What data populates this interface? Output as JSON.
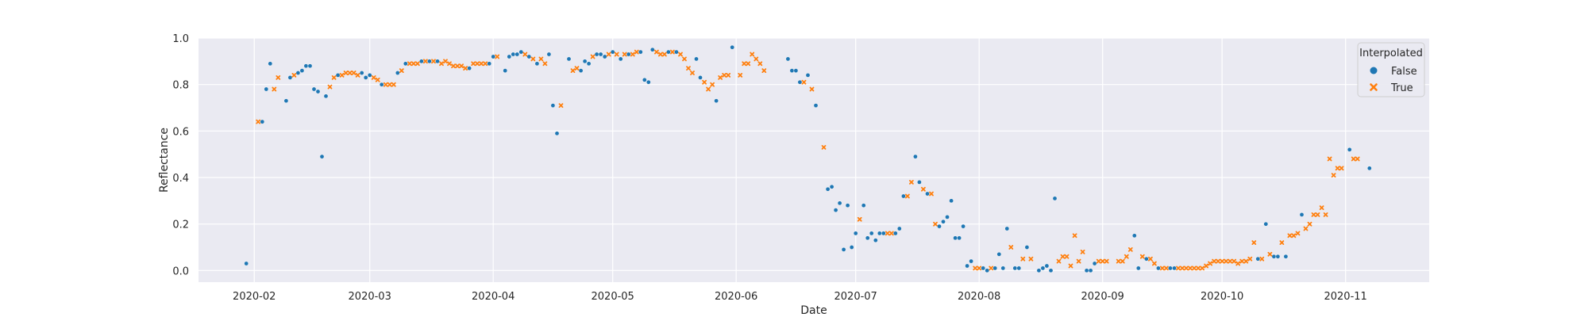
{
  "chart_data": {
    "type": "scatter",
    "title": "",
    "xlabel": "Date",
    "ylabel": "Reflectance",
    "x_axis": {
      "type": "date",
      "range": [
        "2020-01-18",
        "2020-11-22"
      ],
      "ticks": [
        "2020-02-01",
        "2020-03-01",
        "2020-04-01",
        "2020-05-01",
        "2020-06-01",
        "2020-07-01",
        "2020-08-01",
        "2020-09-01",
        "2020-10-01",
        "2020-11-01"
      ],
      "tick_labels": [
        "2020-02",
        "2020-03",
        "2020-04",
        "2020-05",
        "2020-06",
        "2020-07",
        "2020-08",
        "2020-09",
        "2020-10",
        "2020-11"
      ]
    },
    "y_axis": {
      "range": [
        -0.05,
        1.0
      ],
      "ticks": [
        0.0,
        0.2,
        0.4,
        0.6,
        0.8,
        1.0
      ],
      "tick_labels": [
        "0.0",
        "0.2",
        "0.4",
        "0.6",
        "0.8",
        "1.0"
      ]
    },
    "grid": true,
    "legend": {
      "title": "Interpolated",
      "placement": "top-right",
      "entries": [
        {
          "label": "False",
          "marker": "circle",
          "color": "#1f77b4"
        },
        {
          "label": "True",
          "marker": "x",
          "color": "#ff7f0e"
        }
      ]
    },
    "series": [
      {
        "name": "False",
        "color": "#1f77b4",
        "marker": "circle",
        "points": [
          [
            "2020-01-30",
            0.03
          ],
          [
            "2020-02-03",
            0.64
          ],
          [
            "2020-02-04",
            0.78
          ],
          [
            "2020-02-05",
            0.89
          ],
          [
            "2020-02-09",
            0.73
          ],
          [
            "2020-02-10",
            0.83
          ],
          [
            "2020-02-12",
            0.85
          ],
          [
            "2020-02-13",
            0.86
          ],
          [
            "2020-02-14",
            0.88
          ],
          [
            "2020-02-15",
            0.88
          ],
          [
            "2020-02-16",
            0.78
          ],
          [
            "2020-02-17",
            0.77
          ],
          [
            "2020-02-18",
            0.49
          ],
          [
            "2020-02-19",
            0.75
          ],
          [
            "2020-02-22",
            0.84
          ],
          [
            "2020-02-28",
            0.85
          ],
          [
            "2020-02-29",
            0.83
          ],
          [
            "2020-03-01",
            0.84
          ],
          [
            "2020-03-04",
            0.8
          ],
          [
            "2020-03-08",
            0.85
          ],
          [
            "2020-03-10",
            0.89
          ],
          [
            "2020-03-14",
            0.9
          ],
          [
            "2020-03-16",
            0.9
          ],
          [
            "2020-03-18",
            0.9
          ],
          [
            "2020-03-26",
            0.87
          ],
          [
            "2020-03-31",
            0.89
          ],
          [
            "2020-04-01",
            0.92
          ],
          [
            "2020-04-04",
            0.86
          ],
          [
            "2020-04-05",
            0.92
          ],
          [
            "2020-04-06",
            0.93
          ],
          [
            "2020-04-07",
            0.93
          ],
          [
            "2020-04-08",
            0.94
          ],
          [
            "2020-04-10",
            0.92
          ],
          [
            "2020-04-12",
            0.89
          ],
          [
            "2020-04-15",
            0.93
          ],
          [
            "2020-04-16",
            0.71
          ],
          [
            "2020-04-17",
            0.59
          ],
          [
            "2020-04-20",
            0.91
          ],
          [
            "2020-04-23",
            0.86
          ],
          [
            "2020-04-24",
            0.9
          ],
          [
            "2020-04-25",
            0.89
          ],
          [
            "2020-04-27",
            0.93
          ],
          [
            "2020-04-28",
            0.93
          ],
          [
            "2020-04-29",
            0.92
          ],
          [
            "2020-05-01",
            0.94
          ],
          [
            "2020-05-03",
            0.91
          ],
          [
            "2020-05-05",
            0.93
          ],
          [
            "2020-05-08",
            0.94
          ],
          [
            "2020-05-09",
            0.82
          ],
          [
            "2020-05-10",
            0.81
          ],
          [
            "2020-05-11",
            0.95
          ],
          [
            "2020-05-15",
            0.94
          ],
          [
            "2020-05-17",
            0.94
          ],
          [
            "2020-05-22",
            0.91
          ],
          [
            "2020-05-23",
            0.83
          ],
          [
            "2020-05-27",
            0.73
          ],
          [
            "2020-05-31",
            0.96
          ],
          [
            "2020-06-14",
            0.91
          ],
          [
            "2020-06-15",
            0.86
          ],
          [
            "2020-06-16",
            0.86
          ],
          [
            "2020-06-17",
            0.81
          ],
          [
            "2020-06-19",
            0.84
          ],
          [
            "2020-06-21",
            0.71
          ],
          [
            "2020-06-24",
            0.35
          ],
          [
            "2020-06-25",
            0.36
          ],
          [
            "2020-06-26",
            0.26
          ],
          [
            "2020-06-27",
            0.29
          ],
          [
            "2020-06-28",
            0.09
          ],
          [
            "2020-06-29",
            0.28
          ],
          [
            "2020-06-30",
            0.1
          ],
          [
            "2020-07-01",
            0.16
          ],
          [
            "2020-07-03",
            0.28
          ],
          [
            "2020-07-04",
            0.14
          ],
          [
            "2020-07-05",
            0.16
          ],
          [
            "2020-07-06",
            0.13
          ],
          [
            "2020-07-07",
            0.16
          ],
          [
            "2020-07-08",
            0.16
          ],
          [
            "2020-07-11",
            0.16
          ],
          [
            "2020-07-12",
            0.18
          ],
          [
            "2020-07-13",
            0.32
          ],
          [
            "2020-07-16",
            0.49
          ],
          [
            "2020-07-17",
            0.38
          ],
          [
            "2020-07-19",
            0.33
          ],
          [
            "2020-07-22",
            0.19
          ],
          [
            "2020-07-23",
            0.21
          ],
          [
            "2020-07-24",
            0.23
          ],
          [
            "2020-07-25",
            0.3
          ],
          [
            "2020-07-26",
            0.14
          ],
          [
            "2020-07-27",
            0.14
          ],
          [
            "2020-07-28",
            0.19
          ],
          [
            "2020-07-29",
            0.02
          ],
          [
            "2020-07-30",
            0.04
          ],
          [
            "2020-08-02",
            0.01
          ],
          [
            "2020-08-03",
            0.0
          ],
          [
            "2020-08-05",
            0.01
          ],
          [
            "2020-08-06",
            0.07
          ],
          [
            "2020-08-07",
            0.01
          ],
          [
            "2020-08-08",
            0.18
          ],
          [
            "2020-08-10",
            0.01
          ],
          [
            "2020-08-11",
            0.01
          ],
          [
            "2020-08-13",
            0.1
          ],
          [
            "2020-08-16",
            0.0
          ],
          [
            "2020-08-17",
            0.01
          ],
          [
            "2020-08-18",
            0.02
          ],
          [
            "2020-08-19",
            0.0
          ],
          [
            "2020-08-20",
            0.31
          ],
          [
            "2020-08-28",
            0.0
          ],
          [
            "2020-08-29",
            0.0
          ],
          [
            "2020-08-30",
            0.03
          ],
          [
            "2020-09-09",
            0.15
          ],
          [
            "2020-09-10",
            0.01
          ],
          [
            "2020-09-12",
            0.05
          ],
          [
            "2020-09-15",
            0.01
          ],
          [
            "2020-09-18",
            0.01
          ],
          [
            "2020-09-19",
            0.01
          ],
          [
            "2020-10-10",
            0.05
          ],
          [
            "2020-10-12",
            0.2
          ],
          [
            "2020-10-14",
            0.06
          ],
          [
            "2020-10-15",
            0.06
          ],
          [
            "2020-10-17",
            0.06
          ],
          [
            "2020-10-21",
            0.24
          ],
          [
            "2020-11-02",
            0.52
          ],
          [
            "2020-11-07",
            0.44
          ]
        ]
      },
      {
        "name": "True",
        "color": "#ff7f0e",
        "marker": "x",
        "points": [
          [
            "2020-02-02",
            0.64
          ],
          [
            "2020-02-06",
            0.78
          ],
          [
            "2020-02-07",
            0.83
          ],
          [
            "2020-02-11",
            0.84
          ],
          [
            "2020-02-20",
            0.79
          ],
          [
            "2020-02-21",
            0.83
          ],
          [
            "2020-02-23",
            0.84
          ],
          [
            "2020-02-24",
            0.85
          ],
          [
            "2020-02-25",
            0.85
          ],
          [
            "2020-02-26",
            0.85
          ],
          [
            "2020-02-27",
            0.84
          ],
          [
            "2020-03-02",
            0.83
          ],
          [
            "2020-03-03",
            0.82
          ],
          [
            "2020-03-05",
            0.8
          ],
          [
            "2020-03-06",
            0.8
          ],
          [
            "2020-03-07",
            0.8
          ],
          [
            "2020-03-09",
            0.86
          ],
          [
            "2020-03-11",
            0.89
          ],
          [
            "2020-03-12",
            0.89
          ],
          [
            "2020-03-13",
            0.89
          ],
          [
            "2020-03-15",
            0.9
          ],
          [
            "2020-03-17",
            0.9
          ],
          [
            "2020-03-19",
            0.89
          ],
          [
            "2020-03-20",
            0.9
          ],
          [
            "2020-03-21",
            0.89
          ],
          [
            "2020-03-22",
            0.88
          ],
          [
            "2020-03-23",
            0.88
          ],
          [
            "2020-03-24",
            0.88
          ],
          [
            "2020-03-25",
            0.87
          ],
          [
            "2020-03-27",
            0.89
          ],
          [
            "2020-03-28",
            0.89
          ],
          [
            "2020-03-29",
            0.89
          ],
          [
            "2020-03-30",
            0.89
          ],
          [
            "2020-04-02",
            0.92
          ],
          [
            "2020-04-09",
            0.93
          ],
          [
            "2020-04-11",
            0.91
          ],
          [
            "2020-04-13",
            0.91
          ],
          [
            "2020-04-14",
            0.89
          ],
          [
            "2020-04-18",
            0.71
          ],
          [
            "2020-04-21",
            0.86
          ],
          [
            "2020-04-22",
            0.87
          ],
          [
            "2020-04-26",
            0.92
          ],
          [
            "2020-04-30",
            0.93
          ],
          [
            "2020-05-02",
            0.93
          ],
          [
            "2020-05-04",
            0.93
          ],
          [
            "2020-05-06",
            0.93
          ],
          [
            "2020-05-07",
            0.94
          ],
          [
            "2020-05-12",
            0.94
          ],
          [
            "2020-05-13",
            0.93
          ],
          [
            "2020-05-14",
            0.93
          ],
          [
            "2020-05-16",
            0.94
          ],
          [
            "2020-05-18",
            0.93
          ],
          [
            "2020-05-19",
            0.91
          ],
          [
            "2020-05-20",
            0.87
          ],
          [
            "2020-05-21",
            0.85
          ],
          [
            "2020-05-24",
            0.81
          ],
          [
            "2020-05-25",
            0.78
          ],
          [
            "2020-05-26",
            0.8
          ],
          [
            "2020-05-28",
            0.83
          ],
          [
            "2020-05-29",
            0.84
          ],
          [
            "2020-05-30",
            0.84
          ],
          [
            "2020-06-02",
            0.84
          ],
          [
            "2020-06-03",
            0.89
          ],
          [
            "2020-06-04",
            0.89
          ],
          [
            "2020-06-05",
            0.93
          ],
          [
            "2020-06-06",
            0.91
          ],
          [
            "2020-06-07",
            0.89
          ],
          [
            "2020-06-08",
            0.86
          ],
          [
            "2020-06-18",
            0.81
          ],
          [
            "2020-06-20",
            0.78
          ],
          [
            "2020-06-23",
            0.53
          ],
          [
            "2020-07-02",
            0.22
          ],
          [
            "2020-07-09",
            0.16
          ],
          [
            "2020-07-10",
            0.16
          ],
          [
            "2020-07-14",
            0.32
          ],
          [
            "2020-07-15",
            0.38
          ],
          [
            "2020-07-18",
            0.35
          ],
          [
            "2020-07-20",
            0.33
          ],
          [
            "2020-07-21",
            0.2
          ],
          [
            "2020-07-31",
            0.01
          ],
          [
            "2020-08-01",
            0.01
          ],
          [
            "2020-08-04",
            0.01
          ],
          [
            "2020-08-09",
            0.1
          ],
          [
            "2020-08-12",
            0.05
          ],
          [
            "2020-08-14",
            0.05
          ],
          [
            "2020-08-21",
            0.04
          ],
          [
            "2020-08-22",
            0.06
          ],
          [
            "2020-08-23",
            0.06
          ],
          [
            "2020-08-24",
            0.02
          ],
          [
            "2020-08-25",
            0.15
          ],
          [
            "2020-08-26",
            0.04
          ],
          [
            "2020-08-27",
            0.08
          ],
          [
            "2020-08-31",
            0.04
          ],
          [
            "2020-09-01",
            0.04
          ],
          [
            "2020-09-02",
            0.04
          ],
          [
            "2020-09-05",
            0.04
          ],
          [
            "2020-09-06",
            0.04
          ],
          [
            "2020-09-07",
            0.06
          ],
          [
            "2020-09-08",
            0.09
          ],
          [
            "2020-09-11",
            0.06
          ],
          [
            "2020-09-13",
            0.05
          ],
          [
            "2020-09-14",
            0.03
          ],
          [
            "2020-09-16",
            0.01
          ],
          [
            "2020-09-17",
            0.01
          ],
          [
            "2020-09-20",
            0.01
          ],
          [
            "2020-09-21",
            0.01
          ],
          [
            "2020-09-22",
            0.01
          ],
          [
            "2020-09-23",
            0.01
          ],
          [
            "2020-09-24",
            0.01
          ],
          [
            "2020-09-25",
            0.01
          ],
          [
            "2020-09-26",
            0.01
          ],
          [
            "2020-09-27",
            0.02
          ],
          [
            "2020-09-28",
            0.03
          ],
          [
            "2020-09-29",
            0.04
          ],
          [
            "2020-09-30",
            0.04
          ],
          [
            "2020-10-01",
            0.04
          ],
          [
            "2020-10-02",
            0.04
          ],
          [
            "2020-10-03",
            0.04
          ],
          [
            "2020-10-04",
            0.04
          ],
          [
            "2020-10-05",
            0.03
          ],
          [
            "2020-10-06",
            0.04
          ],
          [
            "2020-10-07",
            0.04
          ],
          [
            "2020-10-08",
            0.05
          ],
          [
            "2020-10-09",
            0.12
          ],
          [
            "2020-10-11",
            0.05
          ],
          [
            "2020-10-13",
            0.07
          ],
          [
            "2020-10-16",
            0.12
          ],
          [
            "2020-10-18",
            0.15
          ],
          [
            "2020-10-19",
            0.15
          ],
          [
            "2020-10-20",
            0.16
          ],
          [
            "2020-10-22",
            0.18
          ],
          [
            "2020-10-23",
            0.2
          ],
          [
            "2020-10-24",
            0.24
          ],
          [
            "2020-10-25",
            0.24
          ],
          [
            "2020-10-26",
            0.27
          ],
          [
            "2020-10-27",
            0.24
          ],
          [
            "2020-10-28",
            0.48
          ],
          [
            "2020-10-29",
            0.41
          ],
          [
            "2020-10-30",
            0.44
          ],
          [
            "2020-10-31",
            0.44
          ],
          [
            "2020-11-03",
            0.48
          ],
          [
            "2020-11-04",
            0.48
          ]
        ]
      }
    ]
  }
}
